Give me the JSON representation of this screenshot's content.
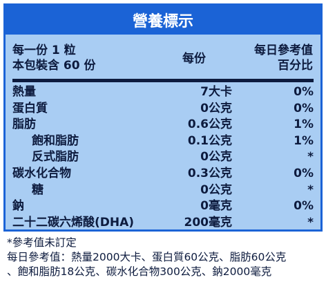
{
  "title": "營養標示",
  "header": {
    "serving_line1": "每一份 1 粒",
    "serving_line2": "本包裝含 60 份",
    "per_serving": "每份",
    "dv_line1": "每日參考值",
    "dv_line2": "百分比"
  },
  "rows": [
    {
      "name": "熱量",
      "amount": "7大卡",
      "dv": "0%",
      "indent": false
    },
    {
      "name": "蛋白質",
      "amount": "0公克",
      "dv": "0%",
      "indent": false
    },
    {
      "name": "脂肪",
      "amount": "0.6公克",
      "dv": "1%",
      "indent": false
    },
    {
      "name": "飽和脂肪",
      "amount": "0.1公克",
      "dv": "1%",
      "indent": true
    },
    {
      "name": "反式脂肪",
      "amount": "0公克",
      "dv": "*",
      "indent": true
    },
    {
      "name": "碳水化合物",
      "amount": "0.3公克",
      "dv": "0%",
      "indent": false
    },
    {
      "name": "糖",
      "amount": "0公克",
      "dv": "*",
      "indent": true
    },
    {
      "name": "鈉",
      "amount": "0毫克",
      "dv": "0%",
      "indent": false
    },
    {
      "name": "二十二碳六烯酸(DHA)",
      "amount": "200毫克",
      "dv": "*",
      "indent": false
    }
  ],
  "footnotes": {
    "line1": "*參考值未訂定",
    "line2": "每日參考值：熱量2000大卡、蛋白質60公克、脂肪60公克",
    "line3": "、飽和脂肪18公克、碳水化合物300公克、鈉2000毫克"
  },
  "colors": {
    "brand_blue": "#1b63d6",
    "panel_bg": "#a9cdf3",
    "text": "#0d1b3e"
  }
}
